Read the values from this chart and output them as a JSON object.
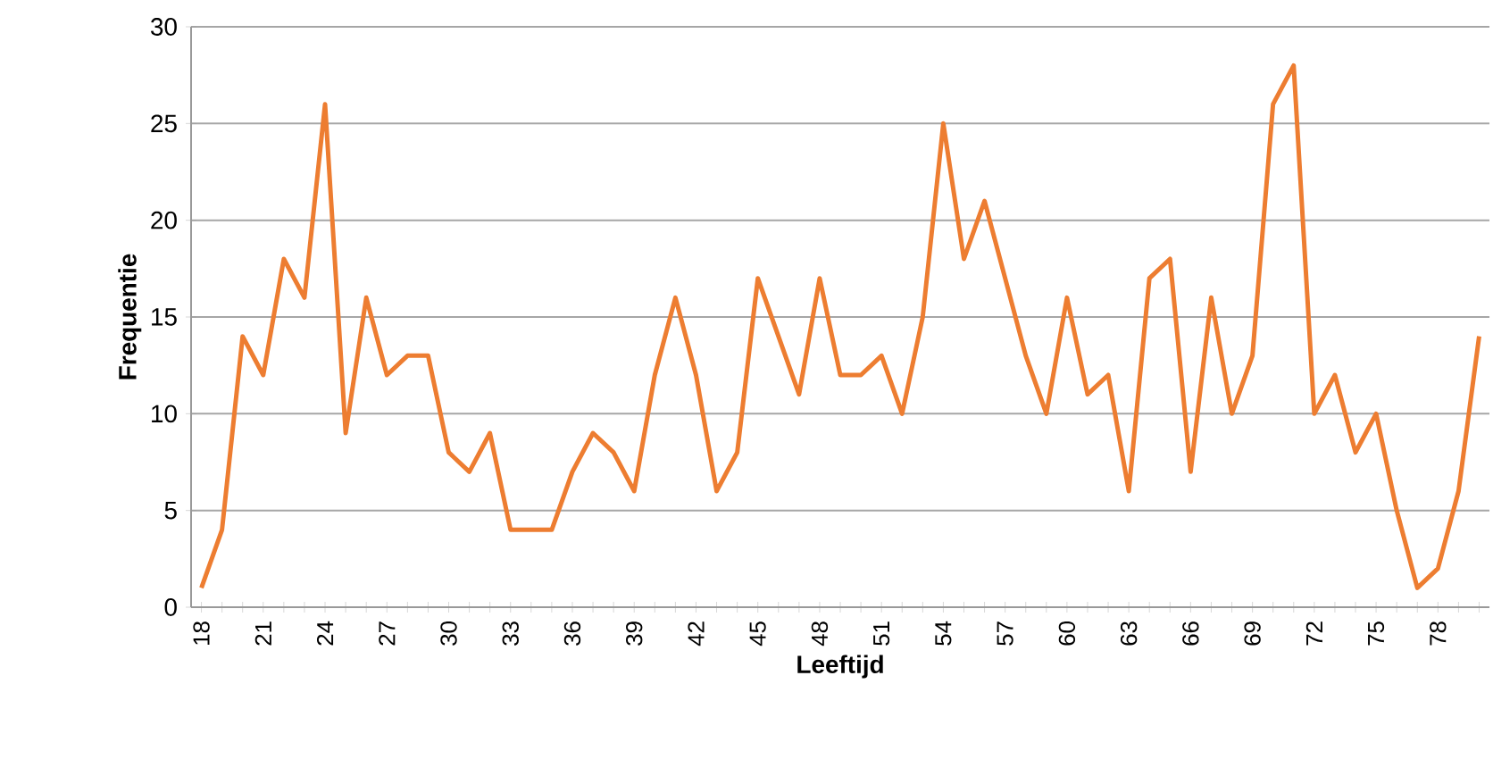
{
  "chart_data": {
    "type": "line",
    "xlabel": "Leeftijd",
    "ylabel": "Frequentie",
    "categories": [
      "18",
      null,
      null,
      "21",
      null,
      null,
      "24",
      null,
      null,
      "27",
      null,
      null,
      "30",
      null,
      null,
      "33",
      null,
      null,
      "36",
      null,
      null,
      "39",
      null,
      null,
      "42",
      null,
      null,
      "45",
      null,
      null,
      "48",
      null,
      null,
      "51",
      null,
      null,
      "54",
      null,
      null,
      "57",
      null,
      null,
      "60",
      null,
      null,
      "63",
      null,
      null,
      "66",
      null,
      null,
      "69",
      null,
      null,
      "72",
      null,
      null,
      "75",
      null,
      null,
      "78",
      null,
      null
    ],
    "values": [
      1,
      4,
      14,
      12,
      18,
      16,
      26,
      9,
      16,
      12,
      13,
      13,
      8,
      7,
      9,
      4,
      4,
      4,
      7,
      9,
      8,
      6,
      12,
      16,
      12,
      6,
      8,
      17,
      14,
      11,
      17,
      12,
      12,
      13,
      10,
      15,
      25,
      18,
      21,
      17,
      13,
      10,
      16,
      11,
      12,
      6,
      17,
      18,
      7,
      16,
      10,
      13,
      26,
      28,
      10,
      12,
      8,
      10,
      5,
      1,
      2,
      6,
      14
    ],
    "color": "#ed7d31",
    "ylim": [
      0,
      30
    ],
    "yticks": [
      0,
      5,
      10,
      15,
      20,
      25,
      30
    ],
    "grid": "y",
    "marker": "none",
    "line_style": "solid"
  }
}
